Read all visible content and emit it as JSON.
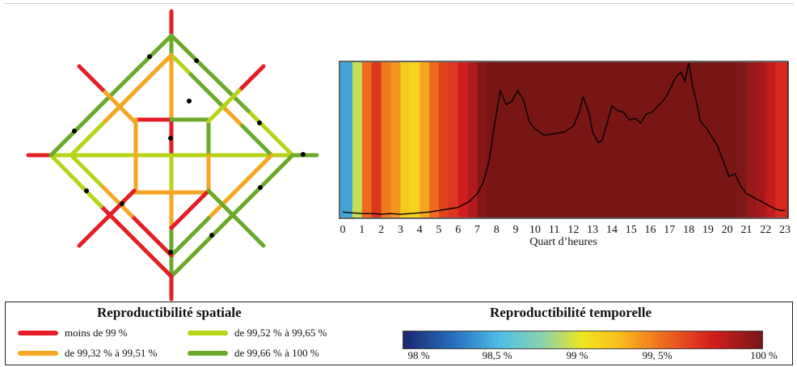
{
  "colors": {
    "red": "#e31e24",
    "orange": "#f5a623",
    "lime": "#b7d319",
    "green": "#6aaa2a",
    "dark_red": "#7a1616"
  },
  "chart_data": [
    {
      "type": "line",
      "title": "",
      "xlabel": "Quart d’heures",
      "ylabel": "",
      "x_ticks": [
        "0",
        "1",
        "2",
        "3",
        "4",
        "5",
        "6",
        "7",
        "8",
        "9",
        "10",
        "11",
        "12",
        "13",
        "14",
        "15",
        "16",
        "17",
        "18",
        "19",
        "20",
        "21",
        "22",
        "23"
      ],
      "xlim": [
        0,
        23
      ],
      "ylim": [
        0,
        1
      ],
      "grid": false,
      "series": [
        {
          "x": [
            0,
            0.5,
            1,
            1.5,
            2,
            2.5,
            3,
            3.5,
            4,
            4.5,
            5,
            5.5,
            6,
            6.3,
            6.6,
            7,
            7.3,
            7.6,
            7.9,
            8.2,
            8.5,
            8.8,
            9.1,
            9.4,
            9.7,
            10,
            10.5,
            11,
            11.5,
            12,
            12.3,
            12.5,
            12.8,
            13,
            13.3,
            13.5,
            13.8,
            14,
            14.3,
            14.6,
            14.9,
            15.2,
            15.5,
            15.8,
            16.1,
            16.4,
            16.7,
            17,
            17.2,
            17.4,
            17.6,
            17.8,
            18,
            18.2,
            18.4,
            18.6,
            18.9,
            19.2,
            19.5,
            19.8,
            20.1,
            20.4,
            20.7,
            21,
            21.3,
            21.6,
            21.9,
            22.2,
            22.5,
            22.8,
            23
          ],
          "y": [
            0.03,
            0.025,
            0.02,
            0.02,
            0.015,
            0.02,
            0.015,
            0.02,
            0.025,
            0.03,
            0.04,
            0.05,
            0.06,
            0.08,
            0.1,
            0.15,
            0.22,
            0.35,
            0.6,
            0.82,
            0.73,
            0.75,
            0.82,
            0.76,
            0.62,
            0.57,
            0.53,
            0.54,
            0.55,
            0.59,
            0.68,
            0.78,
            0.68,
            0.55,
            0.48,
            0.5,
            0.63,
            0.72,
            0.69,
            0.68,
            0.63,
            0.64,
            0.61,
            0.67,
            0.68,
            0.72,
            0.76,
            0.82,
            0.88,
            0.92,
            0.94,
            0.88,
            1.0,
            0.85,
            0.75,
            0.62,
            0.58,
            0.52,
            0.46,
            0.36,
            0.26,
            0.28,
            0.2,
            0.15,
            0.13,
            0.11,
            0.09,
            0.07,
            0.05,
            0.04,
            0.04
          ]
        }
      ],
      "background_strip": {
        "description_units": "reproductibilité temporelle (%) per quarter-hour band",
        "hours": [
          0,
          0.5,
          1,
          1.5,
          2,
          2.5,
          3,
          3.5,
          4,
          4.5,
          5,
          5.5,
          6,
          6.5,
          7,
          7.5,
          8,
          9,
          10,
          11,
          12,
          13,
          14,
          15,
          16,
          17,
          18,
          19,
          20,
          20.5,
          21,
          21.5,
          22,
          22.5
        ],
        "values": [
          98.3,
          98.8,
          99.4,
          99.6,
          99.35,
          99.25,
          99.05,
          99.0,
          99.2,
          99.4,
          99.55,
          99.6,
          99.7,
          99.8,
          99.95,
          100,
          100,
          100,
          100,
          100,
          100,
          100,
          100,
          100,
          100,
          100,
          100,
          100,
          100,
          99.98,
          99.9,
          99.85,
          99.75,
          99.65
        ]
      }
    },
    {
      "type": "heatmap",
      "title": "Reproductibilité temporelle",
      "colorbar_ticks": [
        "98 %",
        "98,5 %",
        "99 %",
        "99, 5%",
        "100 %"
      ],
      "range": [
        97.8,
        100
      ]
    }
  ],
  "network": {
    "legend_title": "Reproductibilité spatiale",
    "legend": [
      {
        "label": "moins de 99 %",
        "color": "#e31e24"
      },
      {
        "label": "de 99,52 % à 99,65 %",
        "color": "#b7d319"
      },
      {
        "label": "de 99,32 % à 99,51 %",
        "color": "#f5a623"
      },
      {
        "label": "de 99,66 %  à 100 %",
        "color": "#6aaa2a"
      }
    ]
  }
}
